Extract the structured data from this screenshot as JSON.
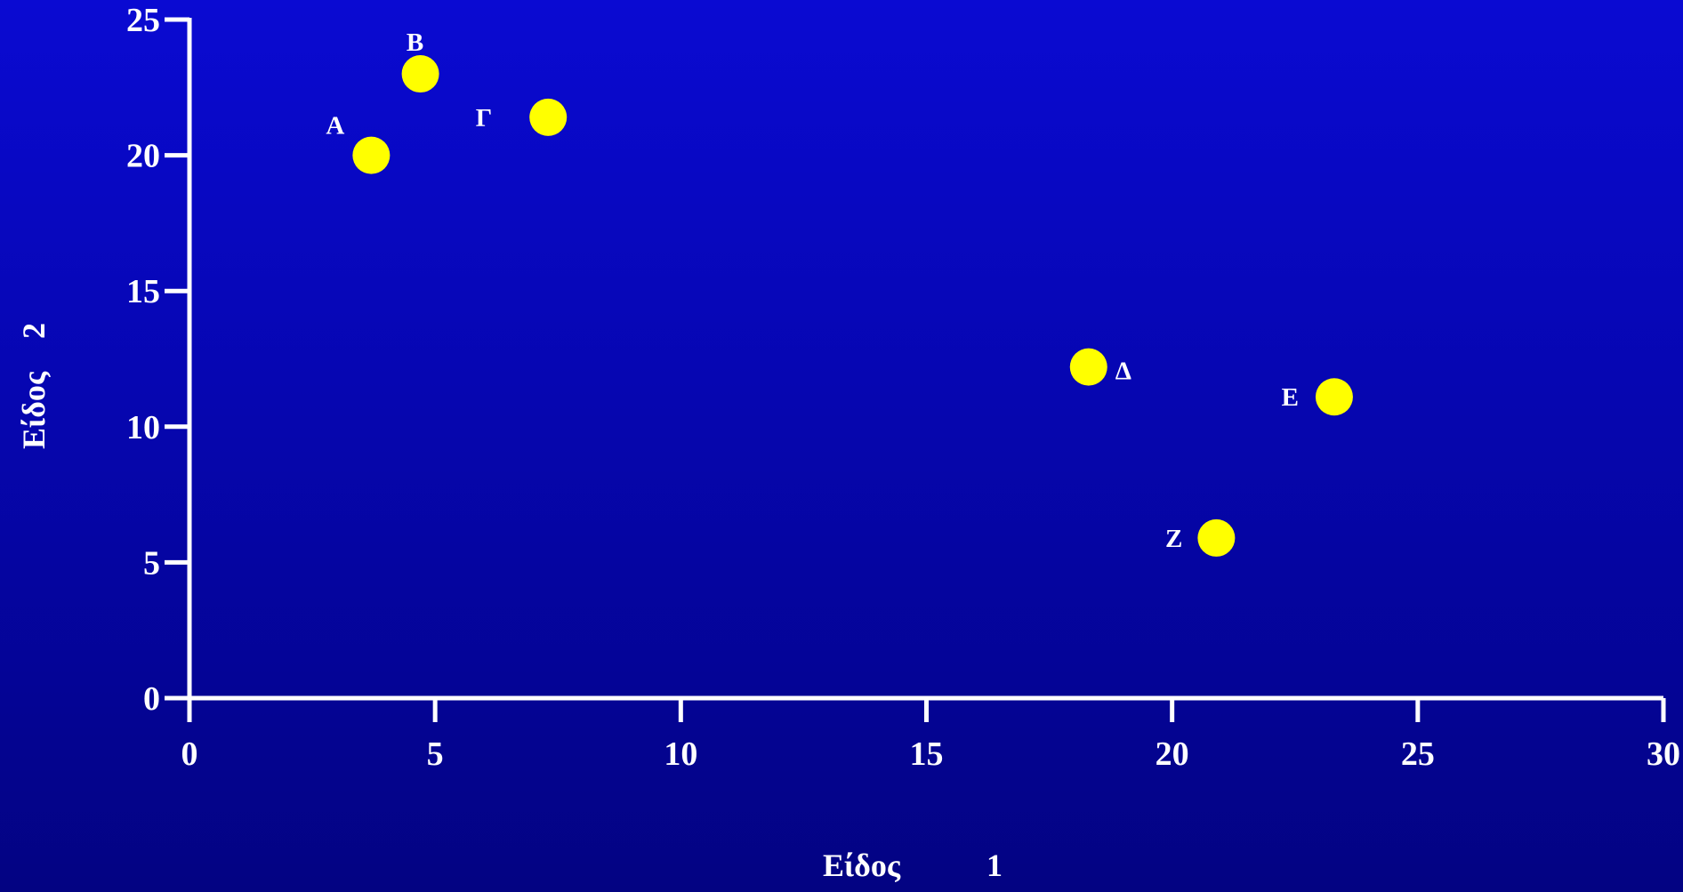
{
  "chart_data": {
    "type": "scatter",
    "title": "",
    "xlabel": "Είδος",
    "xlabel_suffix": "1",
    "ylabel": "Είδος",
    "ylabel_suffix": "2",
    "xlim": [
      0,
      30
    ],
    "ylim": [
      0,
      25
    ],
    "xticks": [
      0,
      5,
      10,
      15,
      20,
      25,
      30
    ],
    "yticks": [
      0,
      5,
      10,
      15,
      20,
      25
    ],
    "grid": false,
    "legend": "none",
    "points": [
      {
        "label": "A",
        "x": 3.7,
        "y": 20.0
      },
      {
        "label": "B",
        "x": 4.7,
        "y": 23.0
      },
      {
        "label": "Γ",
        "x": 7.3,
        "y": 21.4
      },
      {
        "label": "Δ",
        "x": 18.3,
        "y": 12.2
      },
      {
        "label": "E",
        "x": 23.3,
        "y": 11.1
      },
      {
        "label": "Z",
        "x": 20.9,
        "y": 5.9
      }
    ],
    "colors": {
      "marker": "#ffff00",
      "axis": "#ffffff",
      "text": "#ffffff"
    }
  }
}
